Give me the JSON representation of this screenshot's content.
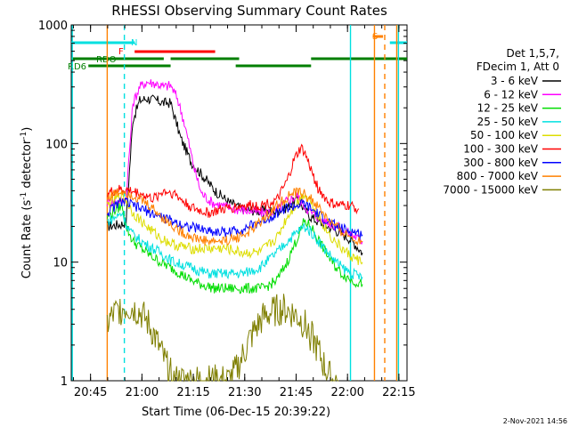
{
  "chart_data": {
    "type": "line",
    "title": "RHESSI Observing Summary Count Rates",
    "xlabel": "Start Time (06-Dec-15 20:39:22)",
    "ylabel_main": "Count Rate (s",
    "ylabel_sup1": "-1",
    "ylabel_mid": " detector",
    "ylabel_sup2": "-1",
    "ylabel_end": ")",
    "yscale": "log",
    "xlim_minutes": [
      0,
      98
    ],
    "ylim": [
      1,
      1000
    ],
    "x_ticks": [
      "20:45",
      "21:00",
      "21:15",
      "21:30",
      "21:45",
      "22:00",
      "22:15"
    ],
    "y_ticks": [
      "1",
      "10",
      "100",
      "1000"
    ],
    "legend_header": [
      "Det 1,5,7,",
      "FDecim 1, Att 0"
    ],
    "footer_date": "2-Nov-2021 14:56",
    "flags": [
      {
        "label": "N",
        "color": "#00e0e0",
        "segments": [
          [
            0,
            18.5
          ],
          [
            93,
            98
          ]
        ]
      },
      {
        "label": "F",
        "color": "#ff0000",
        "segments": [
          [
            18.5,
            42
          ]
        ]
      },
      {
        "label": "RDO",
        "color": "#007f00",
        "segments": [
          [
            0,
            27
          ],
          [
            29,
            49
          ],
          [
            70,
            98
          ]
        ]
      },
      {
        "label": "RD6",
        "color": "#007f00",
        "segments": [
          [
            5,
            29
          ],
          [
            49,
            70
          ],
          [
            48,
            68
          ]
        ]
      },
      {
        "label": "S",
        "color": "#ff8000",
        "segments": [
          [
            88,
            91
          ]
        ]
      }
    ],
    "vlines": [
      {
        "x": 0.3,
        "color": "#00e0e0",
        "style": "solid"
      },
      {
        "x": 10.5,
        "color": "#ff8000",
        "style": "solid"
      },
      {
        "x": 15.5,
        "color": "#00e0e0",
        "style": "dashed"
      },
      {
        "x": 81.5,
        "color": "#00e0e0",
        "style": "solid"
      },
      {
        "x": 88.5,
        "color": "#ff8000",
        "style": "solid"
      },
      {
        "x": 91.5,
        "color": "#ff8000",
        "style": "dashed"
      },
      {
        "x": 95,
        "color": "#ff8000",
        "style": "solid"
      },
      {
        "x": 95.5,
        "color": "#00e0e0",
        "style": "solid"
      }
    ],
    "series": [
      {
        "name": "3 - 6 keV",
        "color": "#000000",
        "x0": 10.5,
        "x1": 85,
        "x": [
          10.5,
          15,
          16,
          18,
          20,
          22,
          25,
          27,
          29,
          32,
          35,
          38,
          42,
          46,
          50,
          55,
          60,
          63,
          66,
          68,
          70,
          72,
          75,
          78,
          81,
          83,
          85
        ],
        "y": [
          20,
          21,
          22,
          160,
          230,
          240,
          230,
          220,
          220,
          110,
          70,
          55,
          40,
          32,
          28,
          27,
          27,
          29,
          34,
          28,
          24,
          22,
          20,
          18,
          16,
          14,
          12
        ]
      },
      {
        "name": "6 - 12 keV",
        "color": "#ff00ff",
        "x0": 10.5,
        "x1": 85,
        "x": [
          10.5,
          15,
          16,
          18,
          20,
          22,
          25,
          27,
          29,
          31,
          33,
          36,
          38,
          41,
          44,
          48,
          52,
          56,
          60,
          63,
          66,
          68,
          70,
          73,
          76,
          79,
          82,
          85
        ],
        "y": [
          32,
          33,
          34,
          220,
          300,
          330,
          320,
          300,
          310,
          240,
          150,
          60,
          38,
          32,
          30,
          28,
          27,
          26,
          27,
          33,
          36,
          30,
          26,
          23,
          21,
          19,
          17,
          15
        ]
      },
      {
        "name": "12 - 25 keV",
        "color": "#00dd00",
        "x0": 10.5,
        "x1": 85,
        "x": [
          10.5,
          13,
          15,
          16,
          18,
          22,
          26,
          29,
          32,
          35,
          38,
          42,
          47,
          52,
          56,
          60,
          63,
          66,
          68,
          70,
          73,
          76,
          79,
          82,
          85
        ],
        "y": [
          24,
          28,
          30,
          20,
          15,
          12,
          10,
          9,
          8,
          7,
          6.5,
          6,
          6,
          6,
          6,
          7,
          10,
          16,
          22,
          20,
          14,
          10,
          8,
          7,
          6.5
        ]
      },
      {
        "name": "25 - 50 keV",
        "color": "#00e0e0",
        "x0": 10.5,
        "x1": 85,
        "x": [
          10.5,
          13,
          15,
          16,
          18,
          22,
          26,
          30,
          35,
          40,
          45,
          50,
          55,
          60,
          63,
          66,
          68,
          70,
          73,
          76,
          79,
          82,
          85
        ],
        "y": [
          22,
          24,
          26,
          21,
          17,
          14,
          12,
          10,
          9,
          8,
          8,
          8,
          9,
          12,
          15,
          18,
          20,
          18,
          14,
          11,
          9,
          8,
          7.5
        ]
      },
      {
        "name": "50 - 100 keV",
        "color": "#dddd00",
        "x0": 10.5,
        "x1": 85,
        "x": [
          10.5,
          13,
          15,
          16,
          18,
          22,
          26,
          30,
          35,
          40,
          45,
          50,
          55,
          60,
          63,
          66,
          68,
          70,
          73,
          76,
          79,
          82,
          85
        ],
        "y": [
          30,
          34,
          37,
          33,
          26,
          20,
          16,
          14,
          13,
          13,
          13,
          12,
          12,
          16,
          24,
          32,
          38,
          32,
          22,
          16,
          13,
          11,
          10
        ]
      },
      {
        "name": "100 - 300 keV",
        "color": "#ff0000",
        "x0": 10.5,
        "x1": 85,
        "x": [
          10.5,
          13,
          15,
          17,
          20,
          24,
          27,
          30,
          33,
          36,
          40,
          45,
          50,
          55,
          60,
          63,
          65,
          67,
          68,
          70,
          72,
          75,
          78,
          81,
          84
        ],
        "y": [
          38,
          40,
          41,
          40,
          38,
          34,
          40,
          38,
          32,
          28,
          26,
          28,
          30,
          30,
          33,
          48,
          72,
          92,
          85,
          60,
          42,
          32,
          30,
          30,
          28
        ]
      },
      {
        "name": "300 - 800 keV",
        "color": "#0000ff",
        "x0": 10.5,
        "x1": 85,
        "x": [
          10.5,
          13,
          15,
          18,
          22,
          26,
          30,
          34,
          38,
          42,
          46,
          50,
          54,
          58,
          62,
          66,
          68,
          70,
          73,
          76,
          79,
          82,
          85
        ],
        "y": [
          26,
          30,
          33,
          30,
          27,
          24,
          22,
          20,
          19,
          18,
          18,
          19,
          21,
          24,
          28,
          30,
          31,
          28,
          24,
          21,
          19,
          18,
          17
        ]
      },
      {
        "name": "800 - 7000 keV",
        "color": "#ff8000",
        "x0": 10.5,
        "x1": 85,
        "x": [
          10.5,
          13,
          15,
          17,
          20,
          24,
          28,
          32,
          36,
          40,
          44,
          48,
          52,
          56,
          60,
          64,
          67,
          70,
          73,
          76,
          79,
          82,
          85
        ],
        "y": [
          35,
          38,
          40,
          38,
          34,
          28,
          22,
          18,
          16,
          15,
          15,
          16,
          18,
          23,
          30,
          37,
          39,
          34,
          27,
          21,
          18,
          16,
          15
        ]
      },
      {
        "name": "7000 - 15000 keV",
        "color": "#7f7f00",
        "x0": 10.5,
        "x1": 85,
        "x": [
          10.5,
          12,
          14,
          16,
          18,
          20,
          22,
          24,
          26,
          28,
          30,
          34,
          38,
          42,
          46,
          48,
          50,
          52,
          54,
          56,
          58,
          60,
          62,
          64,
          66,
          68,
          70,
          72,
          74,
          76,
          78
        ],
        "y": [
          3,
          3.5,
          4,
          4.2,
          4.1,
          3.8,
          3.2,
          2.5,
          1.8,
          1.3,
          1.0,
          1.0,
          1.0,
          1.0,
          1.0,
          1.2,
          1.6,
          2.2,
          2.8,
          3.4,
          3.7,
          3.9,
          4.0,
          3.8,
          3.5,
          3.0,
          2.4,
          1.8,
          1.3,
          1.0,
          1.0
        ]
      }
    ]
  }
}
